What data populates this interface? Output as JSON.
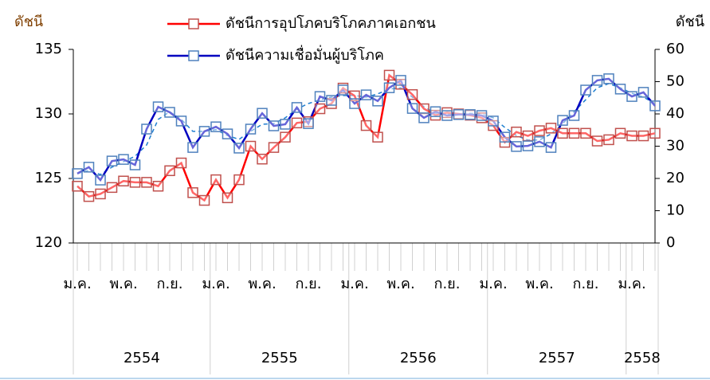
{
  "chart_data": {
    "type": "line",
    "y_label": "ดัชนี",
    "y2_label": "ดัชนี",
    "categories": [
      "ม.ค.",
      null,
      null,
      null,
      "พ.ค.",
      null,
      null,
      null,
      "ก.ย.",
      null,
      null,
      null,
      "ม.ค.",
      null,
      null,
      null,
      "พ.ค.",
      null,
      null,
      null,
      "ก.ย.",
      null,
      null,
      null,
      "ม.ค.",
      null,
      null,
      null,
      "พ.ค.",
      null,
      null,
      null,
      "ก.ย.",
      null,
      null,
      null,
      "ม.ค.",
      null,
      null,
      null,
      "พ.ค.",
      null,
      null,
      null,
      "ก.ย.",
      null,
      null,
      null,
      "ม.ค.",
      null,
      null
    ],
    "years": [
      "2554",
      "2555",
      "2556",
      "2557",
      "2558"
    ],
    "ylim": [
      120,
      135
    ],
    "yticks": [
      120,
      125,
      130,
      135
    ],
    "y2lim": [
      0,
      60
    ],
    "y2ticks": [
      0,
      10,
      20,
      30,
      40,
      50,
      60
    ],
    "series": [
      {
        "name": "ดัชนีการอุปโภคบริโภคภาคเอกชน",
        "color": "#ff0000",
        "marker_color": "#c0504d",
        "values": [
          124.4,
          123.6,
          123.8,
          124.3,
          124.8,
          124.7,
          124.7,
          124.4,
          125.6,
          126.2,
          123.9,
          123.3,
          124.9,
          123.5,
          124.9,
          127.5,
          126.5,
          127.4,
          128.2,
          129.3,
          129.4,
          130.4,
          130.8,
          132.0,
          131.4,
          129.1,
          128.2,
          133.0,
          132.3,
          131.5,
          130.4,
          129.9,
          130.1,
          130.0,
          129.9,
          129.7,
          129.1,
          127.8,
          128.6,
          128.3,
          128.7,
          128.9,
          128.5,
          128.5,
          128.5,
          127.9,
          128.0,
          128.5,
          128.3,
          128.3,
          128.5
        ]
      },
      {
        "name": "ดัชนีความเชื่อมั่นผู้บริโภค",
        "color": "#0000c0",
        "marker_color": "#4f81bd",
        "axis": "y2",
        "values": [
          21.5,
          23.5,
          19.5,
          25.4,
          25.9,
          24.2,
          35.3,
          42.2,
          40.5,
          37.8,
          29.6,
          34.6,
          36.0,
          33.8,
          29.4,
          35.3,
          40.2,
          36.3,
          36.8,
          42.0,
          37.0,
          45.4,
          44.2,
          47.4,
          43.2,
          45.9,
          44.0,
          48.1,
          50.4,
          41.7,
          38.8,
          40.7,
          39.5,
          39.8,
          39.8,
          39.5,
          37.8,
          32.8,
          29.9,
          30.1,
          31.4,
          29.6,
          38.0,
          39.5,
          47.4,
          50.4,
          50.9,
          47.7,
          45.4,
          46.7,
          42.5
        ]
      },
      {
        "color": "#1f7fd0",
        "axis": "y2",
        "dashed": true,
        "values": [
          21.5,
          22.5,
          21.2,
          23.5,
          25.2,
          26.9,
          30.4,
          38.3,
          40.7,
          38.3,
          34.6,
          34.6,
          35.1,
          33.3,
          32.1,
          34.6,
          36.8,
          37.0,
          38.8,
          41.5,
          43.2,
          44.4,
          45.2,
          45.7,
          45.7,
          45.2,
          46.2,
          47.7,
          48.1,
          45.2,
          42.2,
          40.2,
          40.0,
          40.0,
          40.2,
          40.0,
          38.8,
          35.8,
          33.3,
          31.9,
          31.9,
          33.8,
          37.0,
          40.7,
          44.4,
          48.1,
          49.4,
          48.1,
          46.4,
          45.2,
          43.2
        ]
      }
    ]
  }
}
